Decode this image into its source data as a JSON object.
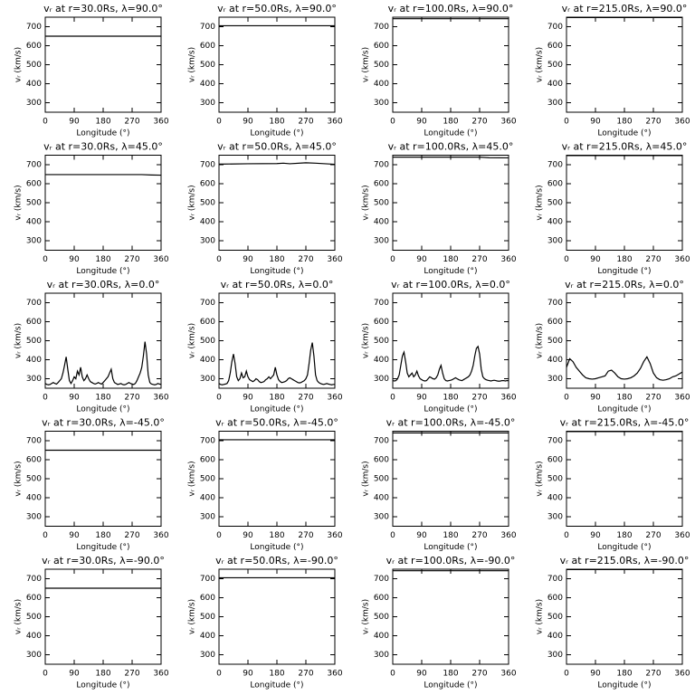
{
  "chart_data": [
    {
      "type": "line",
      "title": "vᵣ at r=30.0Rs, λ=90.0°",
      "xlabel": "Longitude (°)",
      "ylabel": "vᵣ (km/s)",
      "x": [
        0,
        360
      ],
      "values": [
        650,
        650
      ],
      "xlim": [
        0,
        360
      ],
      "ylim": [
        250,
        750
      ],
      "xticks": [
        0,
        90,
        180,
        270,
        360
      ],
      "yticks": [
        300,
        400,
        500,
        600,
        700
      ]
    },
    {
      "type": "line",
      "title": "vᵣ at r=50.0Rs, λ=90.0°",
      "xlabel": "Longitude (°)",
      "ylabel": "vᵣ (km/s)",
      "x": [
        0,
        360
      ],
      "values": [
        705,
        705
      ],
      "xlim": [
        0,
        360
      ],
      "ylim": [
        250,
        750
      ],
      "xticks": [
        0,
        90,
        180,
        270,
        360
      ],
      "yticks": [
        300,
        400,
        500,
        600,
        700
      ]
    },
    {
      "type": "line",
      "title": "vᵣ at r=100.0Rs, λ=90.0°",
      "xlabel": "Longitude (°)",
      "ylabel": "vᵣ (km/s)",
      "x": [
        0,
        360
      ],
      "values": [
        742,
        742
      ],
      "xlim": [
        0,
        360
      ],
      "ylim": [
        250,
        750
      ],
      "xticks": [
        0,
        90,
        180,
        270,
        360
      ],
      "yticks": [
        300,
        400,
        500,
        600,
        700
      ]
    },
    {
      "type": "line",
      "title": "vᵣ at r=215.0Rs, λ=90.0°",
      "xlabel": "Longitude (°)",
      "ylabel": "vᵣ (km/s)",
      "x": [
        0,
        360
      ],
      "values": [
        748,
        748
      ],
      "xlim": [
        0,
        360
      ],
      "ylim": [
        250,
        750
      ],
      "xticks": [
        0,
        90,
        180,
        270,
        360
      ],
      "yticks": [
        300,
        400,
        500,
        600,
        700
      ]
    },
    {
      "type": "line",
      "title": "vᵣ at r=30.0Rs, λ=45.0°",
      "xlabel": "Longitude (°)",
      "ylabel": "vᵣ (km/s)",
      "x": [
        0,
        300,
        330,
        360
      ],
      "values": [
        648,
        648,
        646,
        645
      ],
      "xlim": [
        0,
        360
      ],
      "ylim": [
        250,
        750
      ],
      "xticks": [
        0,
        90,
        180,
        270,
        360
      ],
      "yticks": [
        300,
        400,
        500,
        600,
        700
      ]
    },
    {
      "type": "line",
      "title": "vᵣ at r=50.0Rs, λ=45.0°",
      "xlabel": "Longitude (°)",
      "ylabel": "vᵣ (km/s)",
      "x": [
        0,
        90,
        180,
        200,
        220,
        270,
        300,
        360
      ],
      "values": [
        703,
        705,
        706,
        708,
        705,
        710,
        708,
        702
      ],
      "xlim": [
        0,
        360
      ],
      "ylim": [
        250,
        750
      ],
      "xticks": [
        0,
        90,
        180,
        270,
        360
      ],
      "yticks": [
        300,
        400,
        500,
        600,
        700
      ]
    },
    {
      "type": "line",
      "title": "vᵣ at r=100.0Rs, λ=45.0°",
      "xlabel": "Longitude (°)",
      "ylabel": "vᵣ (km/s)",
      "x": [
        0,
        270,
        300,
        360
      ],
      "values": [
        740,
        740,
        737,
        736
      ],
      "xlim": [
        0,
        360
      ],
      "ylim": [
        250,
        750
      ],
      "xticks": [
        0,
        90,
        180,
        270,
        360
      ],
      "yticks": [
        300,
        400,
        500,
        600,
        700
      ]
    },
    {
      "type": "line",
      "title": "vᵣ at r=215.0Rs, λ=45.0°",
      "xlabel": "Longitude (°)",
      "ylabel": "vᵣ (km/s)",
      "x": [
        0,
        360
      ],
      "values": [
        748,
        748
      ],
      "xlim": [
        0,
        360
      ],
      "ylim": [
        250,
        750
      ],
      "xticks": [
        0,
        90,
        180,
        270,
        360
      ],
      "yticks": [
        300,
        400,
        500,
        600,
        700
      ]
    },
    {
      "type": "line",
      "title": "vᵣ at r=30.0Rs, λ=0.0°",
      "xlabel": "Longitude (°)",
      "ylabel": "vᵣ (km/s)",
      "x": [
        0,
        5,
        10,
        15,
        20,
        25,
        30,
        35,
        40,
        45,
        50,
        55,
        60,
        65,
        70,
        75,
        80,
        85,
        90,
        95,
        100,
        105,
        110,
        115,
        120,
        125,
        130,
        135,
        140,
        145,
        150,
        155,
        160,
        165,
        170,
        175,
        180,
        185,
        190,
        195,
        200,
        205,
        210,
        215,
        220,
        225,
        230,
        235,
        240,
        245,
        250,
        255,
        260,
        265,
        270,
        275,
        280,
        285,
        290,
        295,
        300,
        305,
        310,
        315,
        320,
        325,
        330,
        335,
        340,
        345,
        350,
        355,
        360
      ],
      "values": [
        275,
        270,
        268,
        270,
        275,
        280,
        275,
        272,
        280,
        290,
        300,
        330,
        370,
        415,
        350,
        290,
        275,
        290,
        310,
        300,
        340,
        320,
        360,
        310,
        290,
        300,
        320,
        300,
        285,
        280,
        275,
        272,
        275,
        280,
        275,
        272,
        280,
        290,
        300,
        310,
        330,
        350,
        300,
        280,
        275,
        270,
        272,
        275,
        270,
        268,
        270,
        275,
        280,
        275,
        272,
        270,
        275,
        290,
        310,
        330,
        360,
        420,
        495,
        430,
        320,
        280,
        272,
        270,
        268,
        270,
        275,
        272,
        270
      ],
      "xlim": [
        0,
        360
      ],
      "ylim": [
        250,
        750
      ],
      "xticks": [
        0,
        90,
        180,
        270,
        360
      ],
      "yticks": [
        300,
        400,
        500,
        600,
        700
      ]
    },
    {
      "type": "line",
      "title": "vᵣ at r=50.0Rs, λ=0.0°",
      "xlabel": "Longitude (°)",
      "ylabel": "vᵣ (km/s)",
      "x": [
        0,
        5,
        10,
        15,
        20,
        25,
        30,
        35,
        40,
        45,
        50,
        55,
        60,
        65,
        70,
        75,
        80,
        85,
        90,
        95,
        100,
        105,
        110,
        115,
        120,
        125,
        130,
        135,
        140,
        145,
        150,
        155,
        160,
        165,
        170,
        175,
        180,
        185,
        190,
        195,
        200,
        205,
        210,
        215,
        220,
        225,
        230,
        235,
        240,
        245,
        250,
        255,
        260,
        265,
        270,
        275,
        280,
        285,
        290,
        295,
        300,
        305,
        310,
        315,
        320,
        325,
        330,
        335,
        340,
        345,
        350,
        355,
        360
      ],
      "values": [
        275,
        270,
        268,
        270,
        272,
        275,
        290,
        330,
        390,
        430,
        380,
        310,
        290,
        300,
        330,
        305,
        310,
        340,
        310,
        295,
        290,
        285,
        290,
        300,
        295,
        285,
        280,
        282,
        285,
        295,
        300,
        310,
        300,
        310,
        320,
        360,
        320,
        295,
        285,
        280,
        282,
        285,
        290,
        300,
        305,
        300,
        295,
        290,
        285,
        280,
        278,
        280,
        285,
        290,
        300,
        320,
        380,
        450,
        490,
        420,
        320,
        290,
        280,
        275,
        272,
        270,
        272,
        275,
        272,
        270,
        268,
        270,
        270
      ],
      "xlim": [
        0,
        360
      ],
      "ylim": [
        250,
        750
      ],
      "xticks": [
        0,
        90,
        180,
        270,
        360
      ],
      "yticks": [
        300,
        400,
        500,
        600,
        700
      ]
    },
    {
      "type": "line",
      "title": "vᵣ at r=100.0Rs, λ=0.0°",
      "xlabel": "Longitude (°)",
      "ylabel": "vᵣ (km/s)",
      "x": [
        0,
        5,
        10,
        15,
        20,
        25,
        30,
        35,
        40,
        45,
        50,
        55,
        60,
        65,
        70,
        75,
        80,
        85,
        90,
        95,
        100,
        105,
        110,
        115,
        120,
        125,
        130,
        135,
        140,
        145,
        150,
        155,
        160,
        165,
        170,
        175,
        180,
        185,
        190,
        195,
        200,
        205,
        210,
        215,
        220,
        225,
        230,
        235,
        240,
        245,
        250,
        255,
        260,
        265,
        270,
        275,
        280,
        285,
        290,
        295,
        300,
        305,
        310,
        315,
        320,
        325,
        330,
        335,
        340,
        345,
        350,
        355,
        360
      ],
      "values": [
        290,
        288,
        290,
        300,
        320,
        370,
        420,
        440,
        390,
        330,
        310,
        320,
        330,
        310,
        320,
        340,
        315,
        300,
        295,
        290,
        288,
        290,
        300,
        310,
        305,
        300,
        298,
        305,
        320,
        350,
        370,
        330,
        300,
        290,
        288,
        290,
        292,
        295,
        300,
        305,
        300,
        295,
        292,
        290,
        295,
        300,
        305,
        310,
        320,
        340,
        370,
        420,
        460,
        470,
        430,
        350,
        310,
        300,
        295,
        292,
        290,
        288,
        290,
        292,
        290,
        288,
        287,
        288,
        290,
        290,
        288,
        290,
        290
      ],
      "xlim": [
        0,
        360
      ],
      "ylim": [
        250,
        750
      ],
      "xticks": [
        0,
        90,
        180,
        270,
        360
      ],
      "yticks": [
        300,
        400,
        500,
        600,
        700
      ]
    },
    {
      "type": "line",
      "title": "vᵣ at r=215.0Rs, λ=0.0°",
      "xlabel": "Longitude (°)",
      "ylabel": "vᵣ (km/s)",
      "x": [
        0,
        10,
        20,
        30,
        40,
        50,
        60,
        70,
        80,
        90,
        100,
        110,
        120,
        130,
        140,
        150,
        160,
        170,
        180,
        190,
        200,
        210,
        220,
        230,
        240,
        250,
        260,
        270,
        280,
        290,
        300,
        310,
        320,
        330,
        340,
        350,
        360
      ],
      "values": [
        360,
        405,
        390,
        360,
        340,
        320,
        305,
        300,
        298,
        300,
        305,
        310,
        315,
        340,
        345,
        330,
        310,
        300,
        298,
        300,
        305,
        315,
        330,
        355,
        390,
        415,
        380,
        330,
        305,
        295,
        292,
        295,
        300,
        310,
        315,
        325,
        335
      ],
      "xlim": [
        0,
        360
      ],
      "ylim": [
        250,
        750
      ],
      "xticks": [
        0,
        90,
        180,
        270,
        360
      ],
      "yticks": [
        300,
        400,
        500,
        600,
        700
      ]
    },
    {
      "type": "line",
      "title": "vᵣ at r=30.0Rs, λ=-45.0°",
      "xlabel": "Longitude (°)",
      "ylabel": "vᵣ (km/s)",
      "x": [
        0,
        360
      ],
      "values": [
        650,
        650
      ],
      "xlim": [
        0,
        360
      ],
      "ylim": [
        250,
        750
      ],
      "xticks": [
        0,
        90,
        180,
        270,
        360
      ],
      "yticks": [
        300,
        400,
        500,
        600,
        700
      ]
    },
    {
      "type": "line",
      "title": "vᵣ at r=50.0Rs, λ=-45.0°",
      "xlabel": "Longitude (°)",
      "ylabel": "vᵣ (km/s)",
      "x": [
        0,
        360
      ],
      "values": [
        705,
        705
      ],
      "xlim": [
        0,
        360
      ],
      "ylim": [
        250,
        750
      ],
      "xticks": [
        0,
        90,
        180,
        270,
        360
      ],
      "yticks": [
        300,
        400,
        500,
        600,
        700
      ]
    },
    {
      "type": "line",
      "title": "vᵣ at r=100.0Rs, λ=-45.0°",
      "xlabel": "Longitude (°)",
      "ylabel": "vᵣ (km/s)",
      "x": [
        0,
        360
      ],
      "values": [
        741,
        741
      ],
      "xlim": [
        0,
        360
      ],
      "ylim": [
        250,
        750
      ],
      "xticks": [
        0,
        90,
        180,
        270,
        360
      ],
      "yticks": [
        300,
        400,
        500,
        600,
        700
      ]
    },
    {
      "type": "line",
      "title": "vᵣ at r=215.0Rs, λ=-45.0°",
      "xlabel": "Longitude (°)",
      "ylabel": "vᵣ (km/s)",
      "x": [
        0,
        360
      ],
      "values": [
        748,
        748
      ],
      "xlim": [
        0,
        360
      ],
      "ylim": [
        250,
        750
      ],
      "xticks": [
        0,
        90,
        180,
        270,
        360
      ],
      "yticks": [
        300,
        400,
        500,
        600,
        700
      ]
    },
    {
      "type": "line",
      "title": "vᵣ at r=30.0Rs, λ=-90.0°",
      "xlabel": "Longitude (°)",
      "ylabel": "vᵣ (km/s)",
      "x": [
        0,
        360
      ],
      "values": [
        650,
        650
      ],
      "xlim": [
        0,
        360
      ],
      "ylim": [
        250,
        750
      ],
      "xticks": [
        0,
        90,
        180,
        270,
        360
      ],
      "yticks": [
        300,
        400,
        500,
        600,
        700
      ]
    },
    {
      "type": "line",
      "title": "vᵣ at r=50.0Rs, λ=-90.0°",
      "xlabel": "Longitude (°)",
      "ylabel": "vᵣ (km/s)",
      "x": [
        0,
        360
      ],
      "values": [
        705,
        705
      ],
      "xlim": [
        0,
        360
      ],
      "ylim": [
        250,
        750
      ],
      "xticks": [
        0,
        90,
        180,
        270,
        360
      ],
      "yticks": [
        300,
        400,
        500,
        600,
        700
      ]
    },
    {
      "type": "line",
      "title": "vᵣ at r=100.0Rs, λ=-90.0°",
      "xlabel": "Longitude (°)",
      "ylabel": "vᵣ (km/s)",
      "x": [
        0,
        360
      ],
      "values": [
        742,
        742
      ],
      "xlim": [
        0,
        360
      ],
      "ylim": [
        250,
        750
      ],
      "xticks": [
        0,
        90,
        180,
        270,
        360
      ],
      "yticks": [
        300,
        400,
        500,
        600,
        700
      ]
    },
    {
      "type": "line",
      "title": "vᵣ at r=215.0Rs, λ=-90.0°",
      "xlabel": "Longitude (°)",
      "ylabel": "vᵣ (km/s)",
      "x": [
        0,
        360
      ],
      "values": [
        748,
        748
      ],
      "xlim": [
        0,
        360
      ],
      "ylim": [
        250,
        750
      ],
      "xticks": [
        0,
        90,
        180,
        270,
        360
      ],
      "yticks": [
        300,
        400,
        500,
        600,
        700
      ]
    }
  ]
}
